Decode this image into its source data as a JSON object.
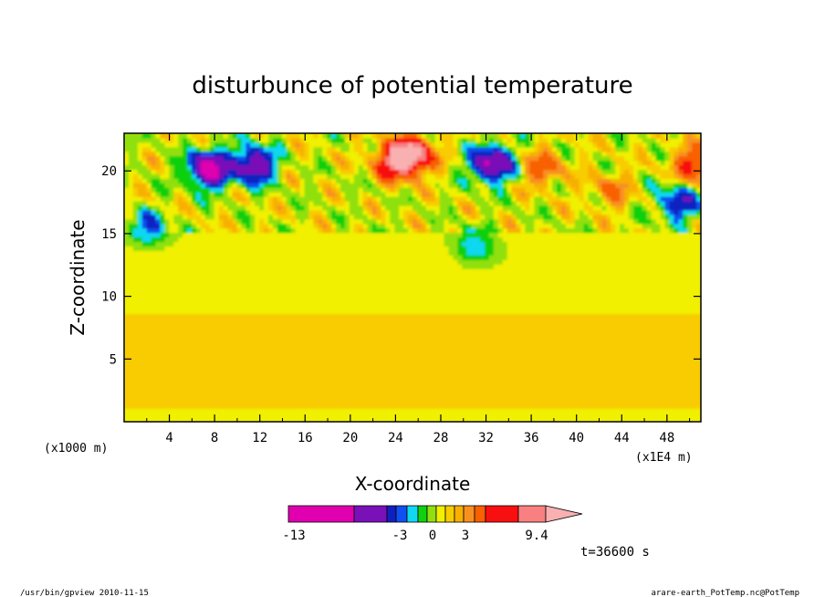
{
  "footer": {
    "left": "/usr/bin/gpview  2010-11-15",
    "right": "arare-earth_PotTemp.nc@PotTemp"
  },
  "colors": {
    "levels": [
      "#e000b0",
      "#7a10b8",
      "#1020c0",
      "#1050f0",
      "#10d8f0",
      "#10d010",
      "#90e010",
      "#f0f000",
      "#f8cc00",
      "#f8b000",
      "#f89020",
      "#f86000",
      "#f81010",
      "#f88080",
      "#f8b0b0"
    ]
  },
  "chart_data": {
    "type": "heatmap",
    "title": "disturbunce of potential temperature",
    "xlabel": "X-coordinate",
    "ylabel": "Z-coordinate",
    "x_unit_left": "(x1000 m)",
    "x_unit_right": "(x1E4 m)",
    "xlim": [
      0,
      51
    ],
    "ylim": [
      0,
      23
    ],
    "x_ticks": [
      4,
      8,
      12,
      16,
      20,
      24,
      28,
      32,
      36,
      40,
      44,
      48
    ],
    "y_ticks": [
      5,
      10,
      15,
      20
    ],
    "colorbar": {
      "labels": [
        "-13",
        "-3",
        "0",
        "3",
        "9.4"
      ],
      "label_values": [
        -13,
        -3,
        0,
        3,
        9.4
      ]
    },
    "time_label": "t=36600 s",
    "regions": {
      "near_surface_band": {
        "z": [
          0,
          1.2
        ],
        "value": 0.5
      },
      "lower_positive_band": {
        "z": [
          1.2,
          8.5
        ],
        "value": 1.2
      },
      "mid_layer": {
        "z": [
          8.5,
          15
        ],
        "value": 0.4
      },
      "upper_disturbed_layer": {
        "z": [
          15,
          23
        ],
        "value_range": [
          -13,
          9.4
        ]
      }
    },
    "extrema": [
      {
        "x": 7.5,
        "z": 20.2,
        "value": -11
      },
      {
        "x": 11.5,
        "z": 20.5,
        "value": -9
      },
      {
        "x": 24,
        "z": 20.8,
        "value": 7.5
      },
      {
        "x": 25.5,
        "z": 21.3,
        "value": 9.0
      },
      {
        "x": 32.5,
        "z": 20.6,
        "value": -10
      },
      {
        "x": 37,
        "z": 20.2,
        "value": 4
      },
      {
        "x": 43,
        "z": 18.5,
        "value": 3
      },
      {
        "x": 49,
        "z": 17.5,
        "value": -6
      },
      {
        "x": 50.5,
        "z": 20.5,
        "value": 6
      },
      {
        "x": 2,
        "z": 15.5,
        "value": -4
      },
      {
        "x": 31,
        "z": 14,
        "value": -3
      }
    ]
  }
}
